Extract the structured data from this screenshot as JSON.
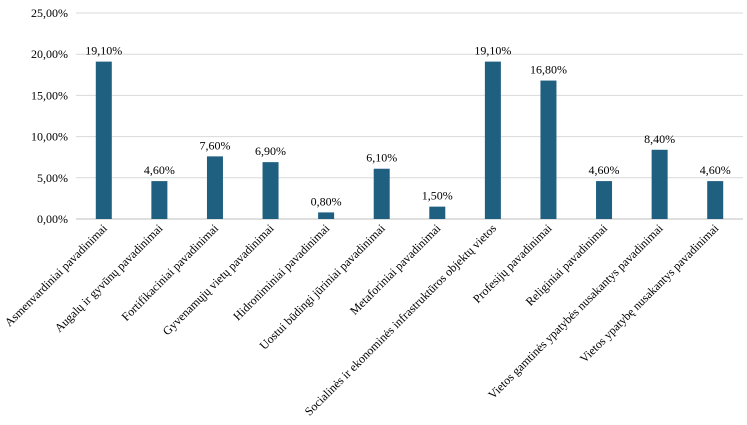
{
  "chart_data": {
    "type": "bar",
    "title": "",
    "xlabel": "",
    "ylabel": "",
    "ylim": [
      0,
      25
    ],
    "yticks": [
      "0,00%",
      "5,00%",
      "10,00%",
      "15,00%",
      "20,00%",
      "25,00%"
    ],
    "grid": true,
    "legend": "none",
    "bar_color": "#1f5f80",
    "categories": [
      "Asmenvardiniai pavadinimai",
      "Augalų ir gyvūnų pavadinimai",
      "Fortifikaciniai pavadinimai",
      "Gyvenamųjų vietų pavadinimai",
      "Hidroniminiai pavadinimai",
      "Uostui būdingi jūriniai pavadinimai",
      "Metaforiniai pavadinimai",
      "Socialinės ir ekonominės infrastruktūros objektų vietos",
      "Profesijų pavadinimai",
      "Religiniai pavadinimai",
      "Vietos gamtinės ypatybės nusakantys pavadinimai",
      "Vietos ypatybę nusakantys pavadinimai"
    ],
    "values": [
      19.1,
      4.6,
      7.6,
      6.9,
      0.8,
      6.1,
      1.5,
      19.1,
      16.8,
      4.6,
      8.4,
      4.6
    ],
    "data_labels": [
      "19,10%",
      "4,60%",
      "7,60%",
      "6,90%",
      "0,80%",
      "6,10%",
      "1,50%",
      "19,10%",
      "16,80%",
      "4,60%",
      "8,40%",
      "4,60%"
    ]
  }
}
